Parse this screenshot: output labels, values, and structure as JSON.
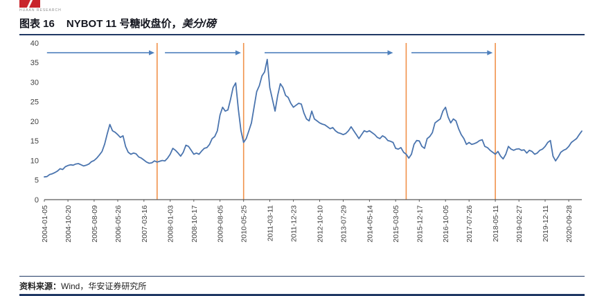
{
  "header": {
    "logo_text": "HUAAN RESEARCH",
    "figure_label": "图表 16",
    "title_main": "NYBOT 11 号糖收盘价，",
    "title_unit": "美分/磅"
  },
  "footer": {
    "source_label": "资料来源：",
    "source_text": "Wind，华安证券研究所"
  },
  "colors": {
    "line": "#4a74ae",
    "divider": "#f0914a",
    "arrow": "#4f81bd",
    "axis_line": "#595959",
    "axis_text": "#404040",
    "rule": "#1f3864",
    "logo_red": "#c8242b"
  },
  "chart_data": {
    "type": "line",
    "title": "NYBOT 11号糖收盘价，美分/磅",
    "ylabel": "美分/磅",
    "xlabel": "",
    "grid": false,
    "legend": "none",
    "x_start": "2004-01",
    "x_step": "month",
    "ylim": [
      0,
      40
    ],
    "y_ticks": [
      0,
      5,
      10,
      15,
      20,
      25,
      30,
      35,
      40
    ],
    "x_tick_labels": [
      "2004-01-05",
      "2004-10-20",
      "2005-08-09",
      "2006-05-26",
      "2007-03-16",
      "2008-01-03",
      "2008-10-17",
      "2009-08-05",
      "2010-05-25",
      "2011-03-11",
      "2011-12-23",
      "2012-10-10",
      "2013-07-29",
      "2014-05-14",
      "2015-03-05",
      "2015-12-17",
      "2016-10-05",
      "2017-07-26",
      "2018-05-11",
      "2019-02-27",
      "2019-12-11",
      "2020-09-28"
    ],
    "x_tick_months": [
      0,
      9,
      19,
      28,
      38,
      48,
      57,
      67,
      76,
      86,
      95,
      105,
      114,
      124,
      134,
      143,
      153,
      162,
      172,
      181,
      191,
      200
    ],
    "values": [
      5.8,
      5.9,
      6.4,
      6.6,
      6.9,
      7.3,
      7.9,
      7.7,
      8.4,
      8.7,
      8.9,
      8.8,
      9.1,
      9.2,
      8.9,
      8.6,
      8.8,
      9.1,
      9.7,
      10.0,
      10.6,
      11.4,
      12.3,
      14.2,
      16.8,
      19.2,
      17.6,
      17.2,
      16.6,
      15.9,
      16.3,
      13.6,
      12.1,
      11.6,
      11.9,
      11.7,
      10.9,
      10.6,
      10.1,
      9.6,
      9.3,
      9.4,
      9.9,
      9.6,
      9.8,
      10.0,
      9.9,
      10.6,
      11.6,
      13.1,
      12.6,
      11.9,
      11.1,
      12.1,
      13.9,
      13.6,
      12.6,
      11.6,
      11.9,
      11.6,
      12.4,
      13.1,
      13.3,
      14.1,
      15.6,
      16.1,
      17.6,
      21.6,
      23.6,
      22.6,
      22.9,
      25.6,
      28.6,
      29.8,
      23.1,
      17.6,
      14.6,
      15.6,
      17.6,
      19.6,
      23.6,
      27.6,
      29.1,
      31.6,
      32.6,
      35.8,
      28.6,
      25.6,
      22.6,
      26.6,
      29.6,
      28.6,
      26.6,
      26.1,
      24.6,
      23.6,
      24.1,
      24.6,
      24.4,
      22.1,
      20.6,
      20.1,
      22.6,
      20.6,
      20.1,
      19.6,
      19.3,
      19.1,
      18.6,
      18.1,
      18.4,
      17.6,
      17.1,
      16.9,
      16.6,
      16.9,
      17.6,
      18.6,
      17.6,
      16.6,
      15.6,
      16.6,
      17.6,
      17.3,
      17.6,
      17.1,
      16.6,
      15.9,
      15.6,
      16.3,
      15.9,
      15.1,
      14.9,
      14.6,
      13.1,
      12.9,
      13.3,
      12.1,
      11.6,
      10.6,
      11.6,
      14.1,
      15.1,
      15.0,
      13.6,
      13.1,
      15.6,
      16.1,
      17.1,
      19.6,
      20.1,
      20.6,
      22.6,
      23.6,
      21.1,
      19.6,
      20.6,
      20.1,
      18.1,
      16.6,
      15.6,
      14.1,
      14.6,
      14.1,
      14.3,
      14.6,
      15.1,
      15.3,
      13.6,
      13.3,
      12.6,
      12.1,
      11.6,
      12.3,
      11.1,
      10.4,
      11.6,
      13.6,
      12.9,
      12.6,
      12.9,
      13.0,
      12.6,
      12.7,
      11.9,
      12.6,
      12.3,
      11.6,
      11.9,
      12.6,
      12.9,
      13.6,
      14.6,
      15.1,
      11.1,
      9.9,
      10.9,
      12.1,
      12.6,
      12.9,
      13.6,
      14.6,
      15.1,
      15.6,
      16.6,
      17.5
    ],
    "vlines_months": [
      43,
      76,
      138,
      172
    ],
    "arrows": {
      "y_value": 37.5,
      "segments": [
        [
          1,
          42
        ],
        [
          46,
          75
        ],
        [
          84,
          133
        ],
        [
          140,
          171
        ]
      ]
    }
  }
}
